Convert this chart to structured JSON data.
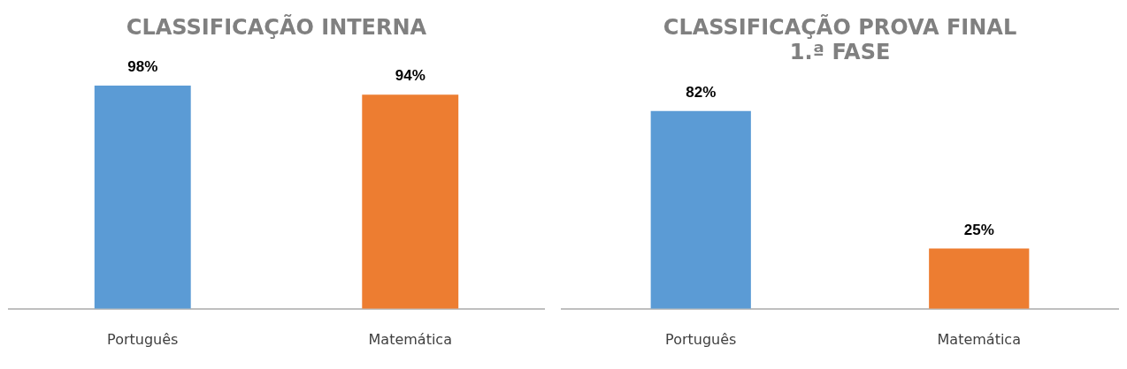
{
  "chart_data": [
    {
      "type": "bar",
      "title": "CLASSIFICAÇÃO INTERNA",
      "categories": [
        "Português",
        "Matemática"
      ],
      "values": [
        98,
        94
      ],
      "colors": [
        "#5b9bd5",
        "#ed7d31"
      ],
      "data_labels": true,
      "value_labels": [
        "98%",
        "94%"
      ],
      "legend": false
    },
    {
      "type": "bar",
      "title": "CLASSIFICAÇÃO PROVA FINAL\n1.ª FASE",
      "categories": [
        "Português",
        "Matemática"
      ],
      "values": [
        82,
        25
      ],
      "colors": [
        "#5b9bd5",
        "#ed7d31"
      ],
      "data_labels": true,
      "value_labels": [
        "82%",
        "25%"
      ],
      "legend": false
    }
  ]
}
